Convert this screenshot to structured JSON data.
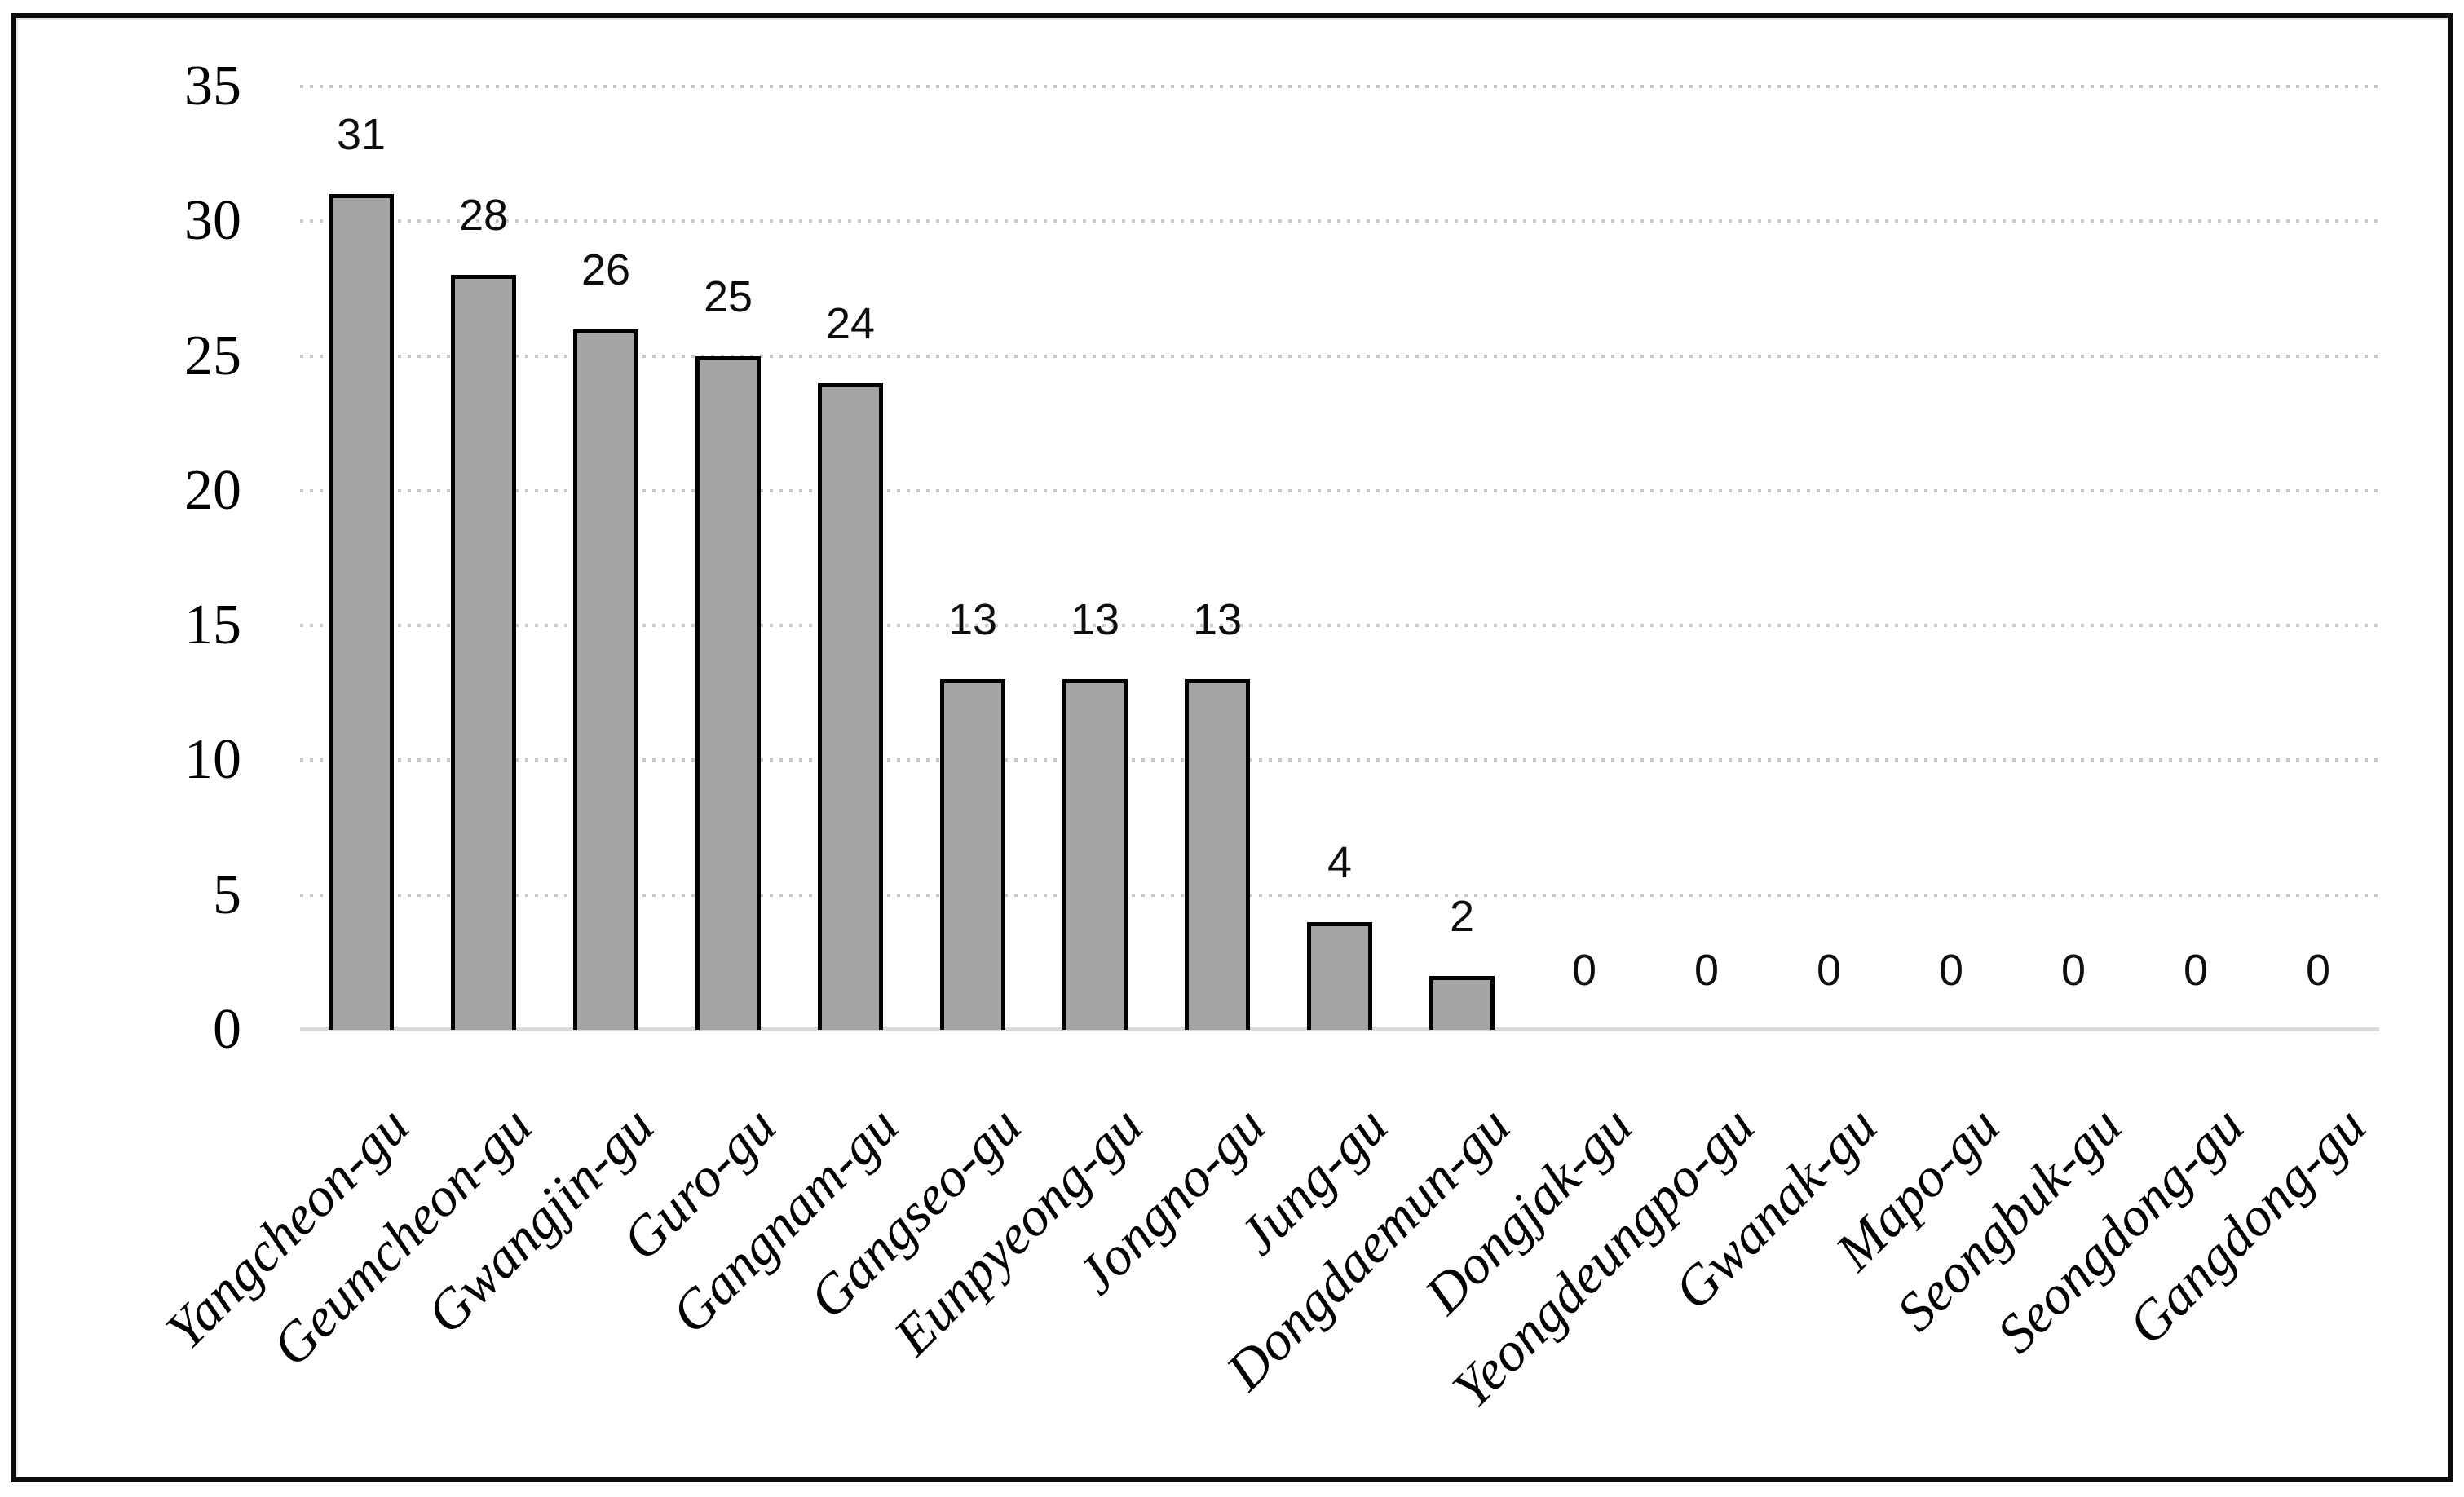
{
  "chart_data": {
    "type": "bar",
    "title": "",
    "xlabel": "",
    "ylabel": "",
    "categories": [
      "Yangcheon-gu",
      "Geumcheon-gu",
      "Gwangjin-gu",
      "Guro-gu",
      "Gangnam-gu",
      "Gangseo-gu",
      "Eunpyeong-gu",
      "Jongno-gu",
      "Jung-gu",
      "Dongdaemun-gu",
      "Dongjak-gu",
      "Yeongdeungpo-gu",
      "Gwanak-gu",
      "Mapo-gu",
      "Seongbuk-gu",
      "Seongdong-gu",
      "Gangdong-gu"
    ],
    "values": [
      31,
      28,
      26,
      25,
      24,
      13,
      13,
      13,
      4,
      2,
      0,
      0,
      0,
      0,
      0,
      0,
      0
    ],
    "data_labels": [
      "31",
      "28",
      "26",
      "25",
      "24",
      "13",
      "13",
      "13",
      "4",
      "2",
      "0",
      "0",
      "0",
      "0",
      "0",
      "0",
      "0"
    ],
    "ylim": [
      0,
      35
    ],
    "yticks": [
      0,
      5,
      10,
      15,
      20,
      25,
      30,
      35
    ],
    "grid": "horizontal-dotted",
    "legend": "none",
    "colors": {
      "bar_fill": "#a5a5a5",
      "bar_border": "#000000",
      "gridline": "#c9c9c9",
      "axis_line": "#d9d9d9",
      "text": "#000000",
      "frame_border": "#0c0c0c",
      "background": "#ffffff"
    }
  }
}
